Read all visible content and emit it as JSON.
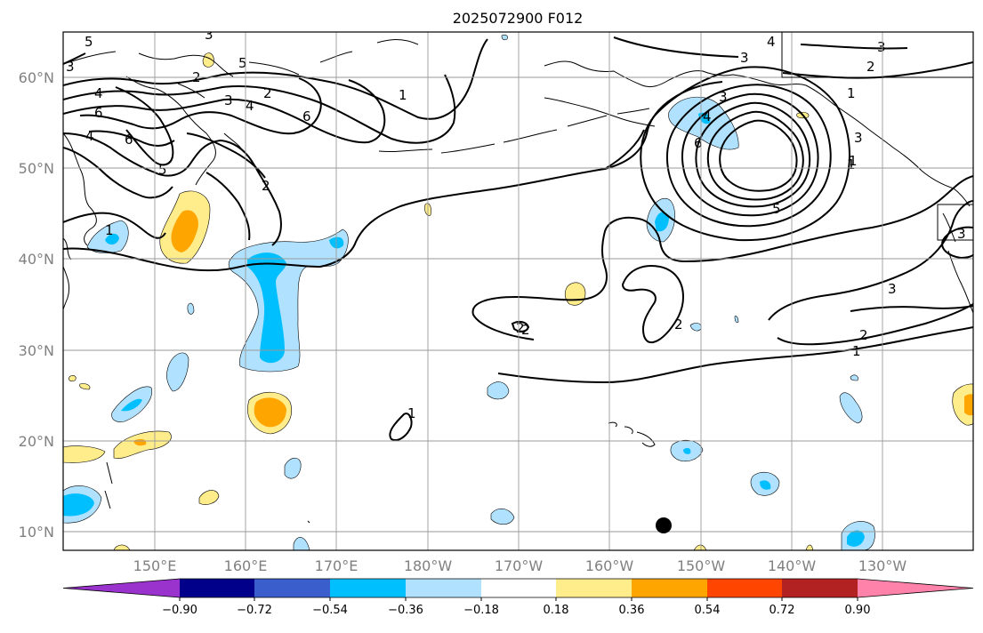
{
  "title": "2025072900 F012",
  "lat_labels": [
    "60°N",
    "50°N",
    "40°N",
    "30°N",
    "20°N",
    "10°N"
  ],
  "lon_labels": [
    "150°E",
    "160°E",
    "170°E",
    "180°W",
    "170°W",
    "160°W",
    "150°W",
    "140°W",
    "130°W"
  ],
  "colorbar": {
    "colors": [
      "#9a32cd",
      "#00008b",
      "#3a5fcd",
      "#00bfff",
      "#b0e2ff",
      "#ffffff",
      "#ffec8b",
      "#ffa500",
      "#ff4500",
      "#b22222",
      "#ff82ab"
    ],
    "tick_labels": [
      "−0.90",
      "−0.72",
      "−0.54",
      "−0.36",
      "−0.18",
      "0.18",
      "0.36",
      "0.54",
      "0.72",
      "0.90"
    ]
  },
  "contour_labels": [
    "5",
    "3",
    "3",
    "2",
    "4",
    "5",
    "6",
    "1",
    "4",
    "3",
    "2",
    "6",
    "6",
    "5",
    "4",
    "2",
    "1",
    "1",
    "2",
    "1",
    "2",
    "4",
    "3",
    "3",
    "5",
    "6",
    "4",
    "3",
    "2",
    "1",
    "1",
    "2",
    "3",
    "3",
    "3",
    "2",
    "1"
  ]
}
